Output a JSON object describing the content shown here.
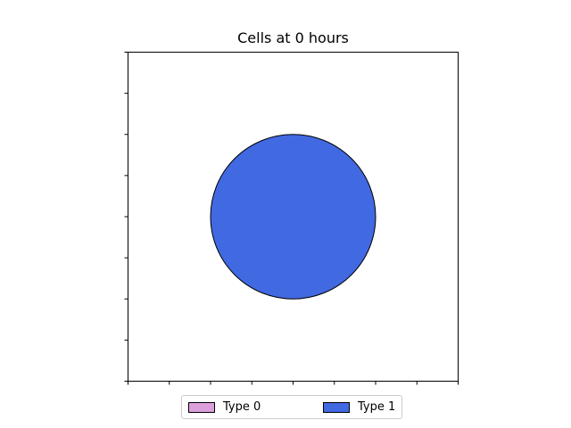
{
  "chart_data": {
    "type": "scatter",
    "title": "Cells at 0 hours",
    "xlabel": "",
    "ylabel": "",
    "xlim": [
      0,
      8
    ],
    "ylim": [
      0,
      8
    ],
    "x_ticks": [
      0,
      1,
      2,
      3,
      4,
      5,
      6,
      7,
      8
    ],
    "y_ticks": [
      0,
      1,
      2,
      3,
      4,
      5,
      6,
      7,
      8
    ],
    "tick_labels_shown": false,
    "grid": false,
    "legend_position": "bottom",
    "legend": [
      {
        "label": "Type 0",
        "color": "#dda0dd"
      },
      {
        "label": "Type 1",
        "color": "#4169e1"
      }
    ],
    "cells": [
      {
        "type": "Type 1",
        "x": 4,
        "y": 4,
        "radius": 2,
        "color": "#4169e1"
      }
    ]
  }
}
